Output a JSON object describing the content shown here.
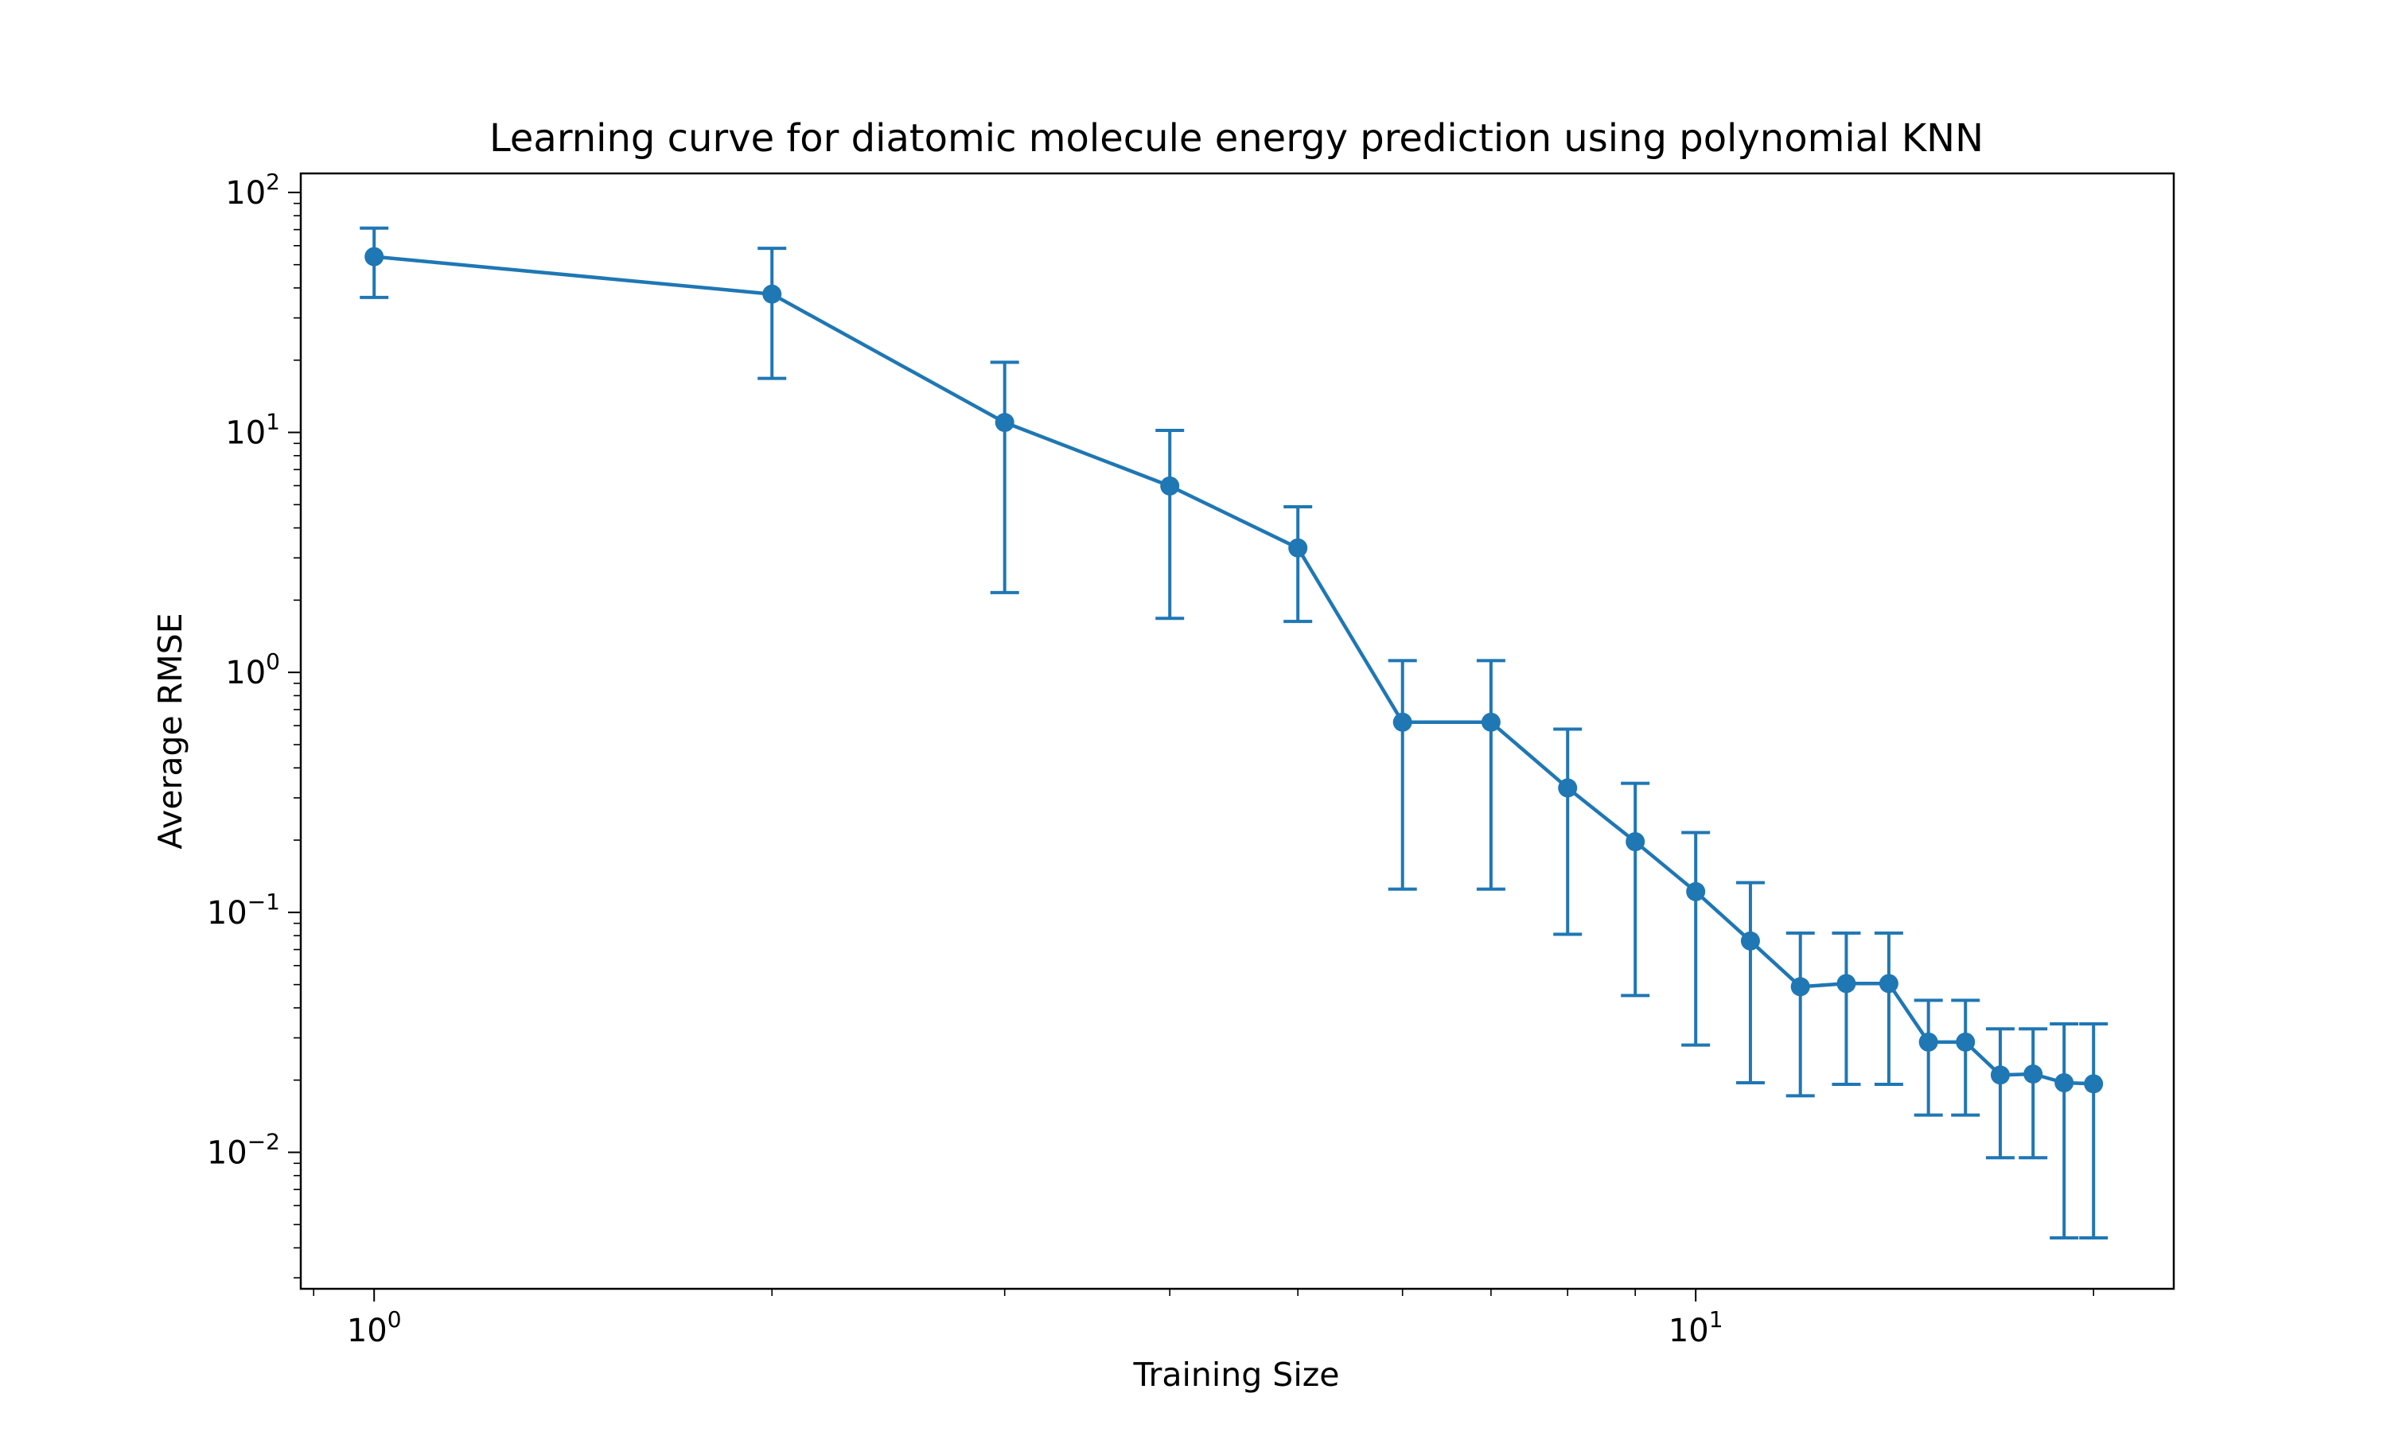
{
  "chart_data": {
    "type": "line",
    "title": "Learning curve for diatomic molecule energy prediction using polynomial KNN",
    "xlabel": "Training Size",
    "ylabel": "Average RMSE",
    "xscale": "log",
    "yscale": "log",
    "xlim": [
      0.88,
      23
    ],
    "ylim": [
      0.0027,
      120
    ],
    "grid": false,
    "line_color": "#1f77b4",
    "x_ticks": [
      {
        "base": "10",
        "exp": "0",
        "value": 1
      },
      {
        "base": "10",
        "exp": "1",
        "value": 10
      }
    ],
    "y_ticks": [
      {
        "base": "10",
        "exp": "2",
        "value": 100
      },
      {
        "base": "10",
        "exp": "1",
        "value": 10
      },
      {
        "base": "10",
        "exp": "0",
        "value": 1
      },
      {
        "base": "10",
        "exp": "−1",
        "value": 0.1
      },
      {
        "base": "10",
        "exp": "−2",
        "value": 0.01
      }
    ],
    "series": [
      {
        "x": [
          1,
          2,
          3,
          4,
          5,
          6,
          7,
          8,
          9,
          10,
          11,
          12,
          13,
          14,
          15,
          16,
          17,
          18,
          19,
          20
        ],
        "y": [
          54,
          37.7,
          11,
          5.98,
          3.3,
          0.62,
          0.62,
          0.33,
          0.197,
          0.122,
          0.076,
          0.049,
          0.0505,
          0.0505,
          0.0288,
          0.0288,
          0.021,
          0.0212,
          0.0195,
          0.0193
        ],
        "yerr_low": [
          36.5,
          16.8,
          2.15,
          1.68,
          1.63,
          0.125,
          0.125,
          0.081,
          0.045,
          0.028,
          0.0195,
          0.0172,
          0.0192,
          0.0192,
          0.0143,
          0.0143,
          0.0095,
          0.0095,
          0.0044,
          0.0044
        ],
        "yerr_high": [
          71,
          58.5,
          19.6,
          10.2,
          4.9,
          1.12,
          1.12,
          0.58,
          0.345,
          0.215,
          0.133,
          0.082,
          0.082,
          0.082,
          0.043,
          0.043,
          0.0327,
          0.0327,
          0.0343,
          0.0343
        ]
      }
    ]
  }
}
